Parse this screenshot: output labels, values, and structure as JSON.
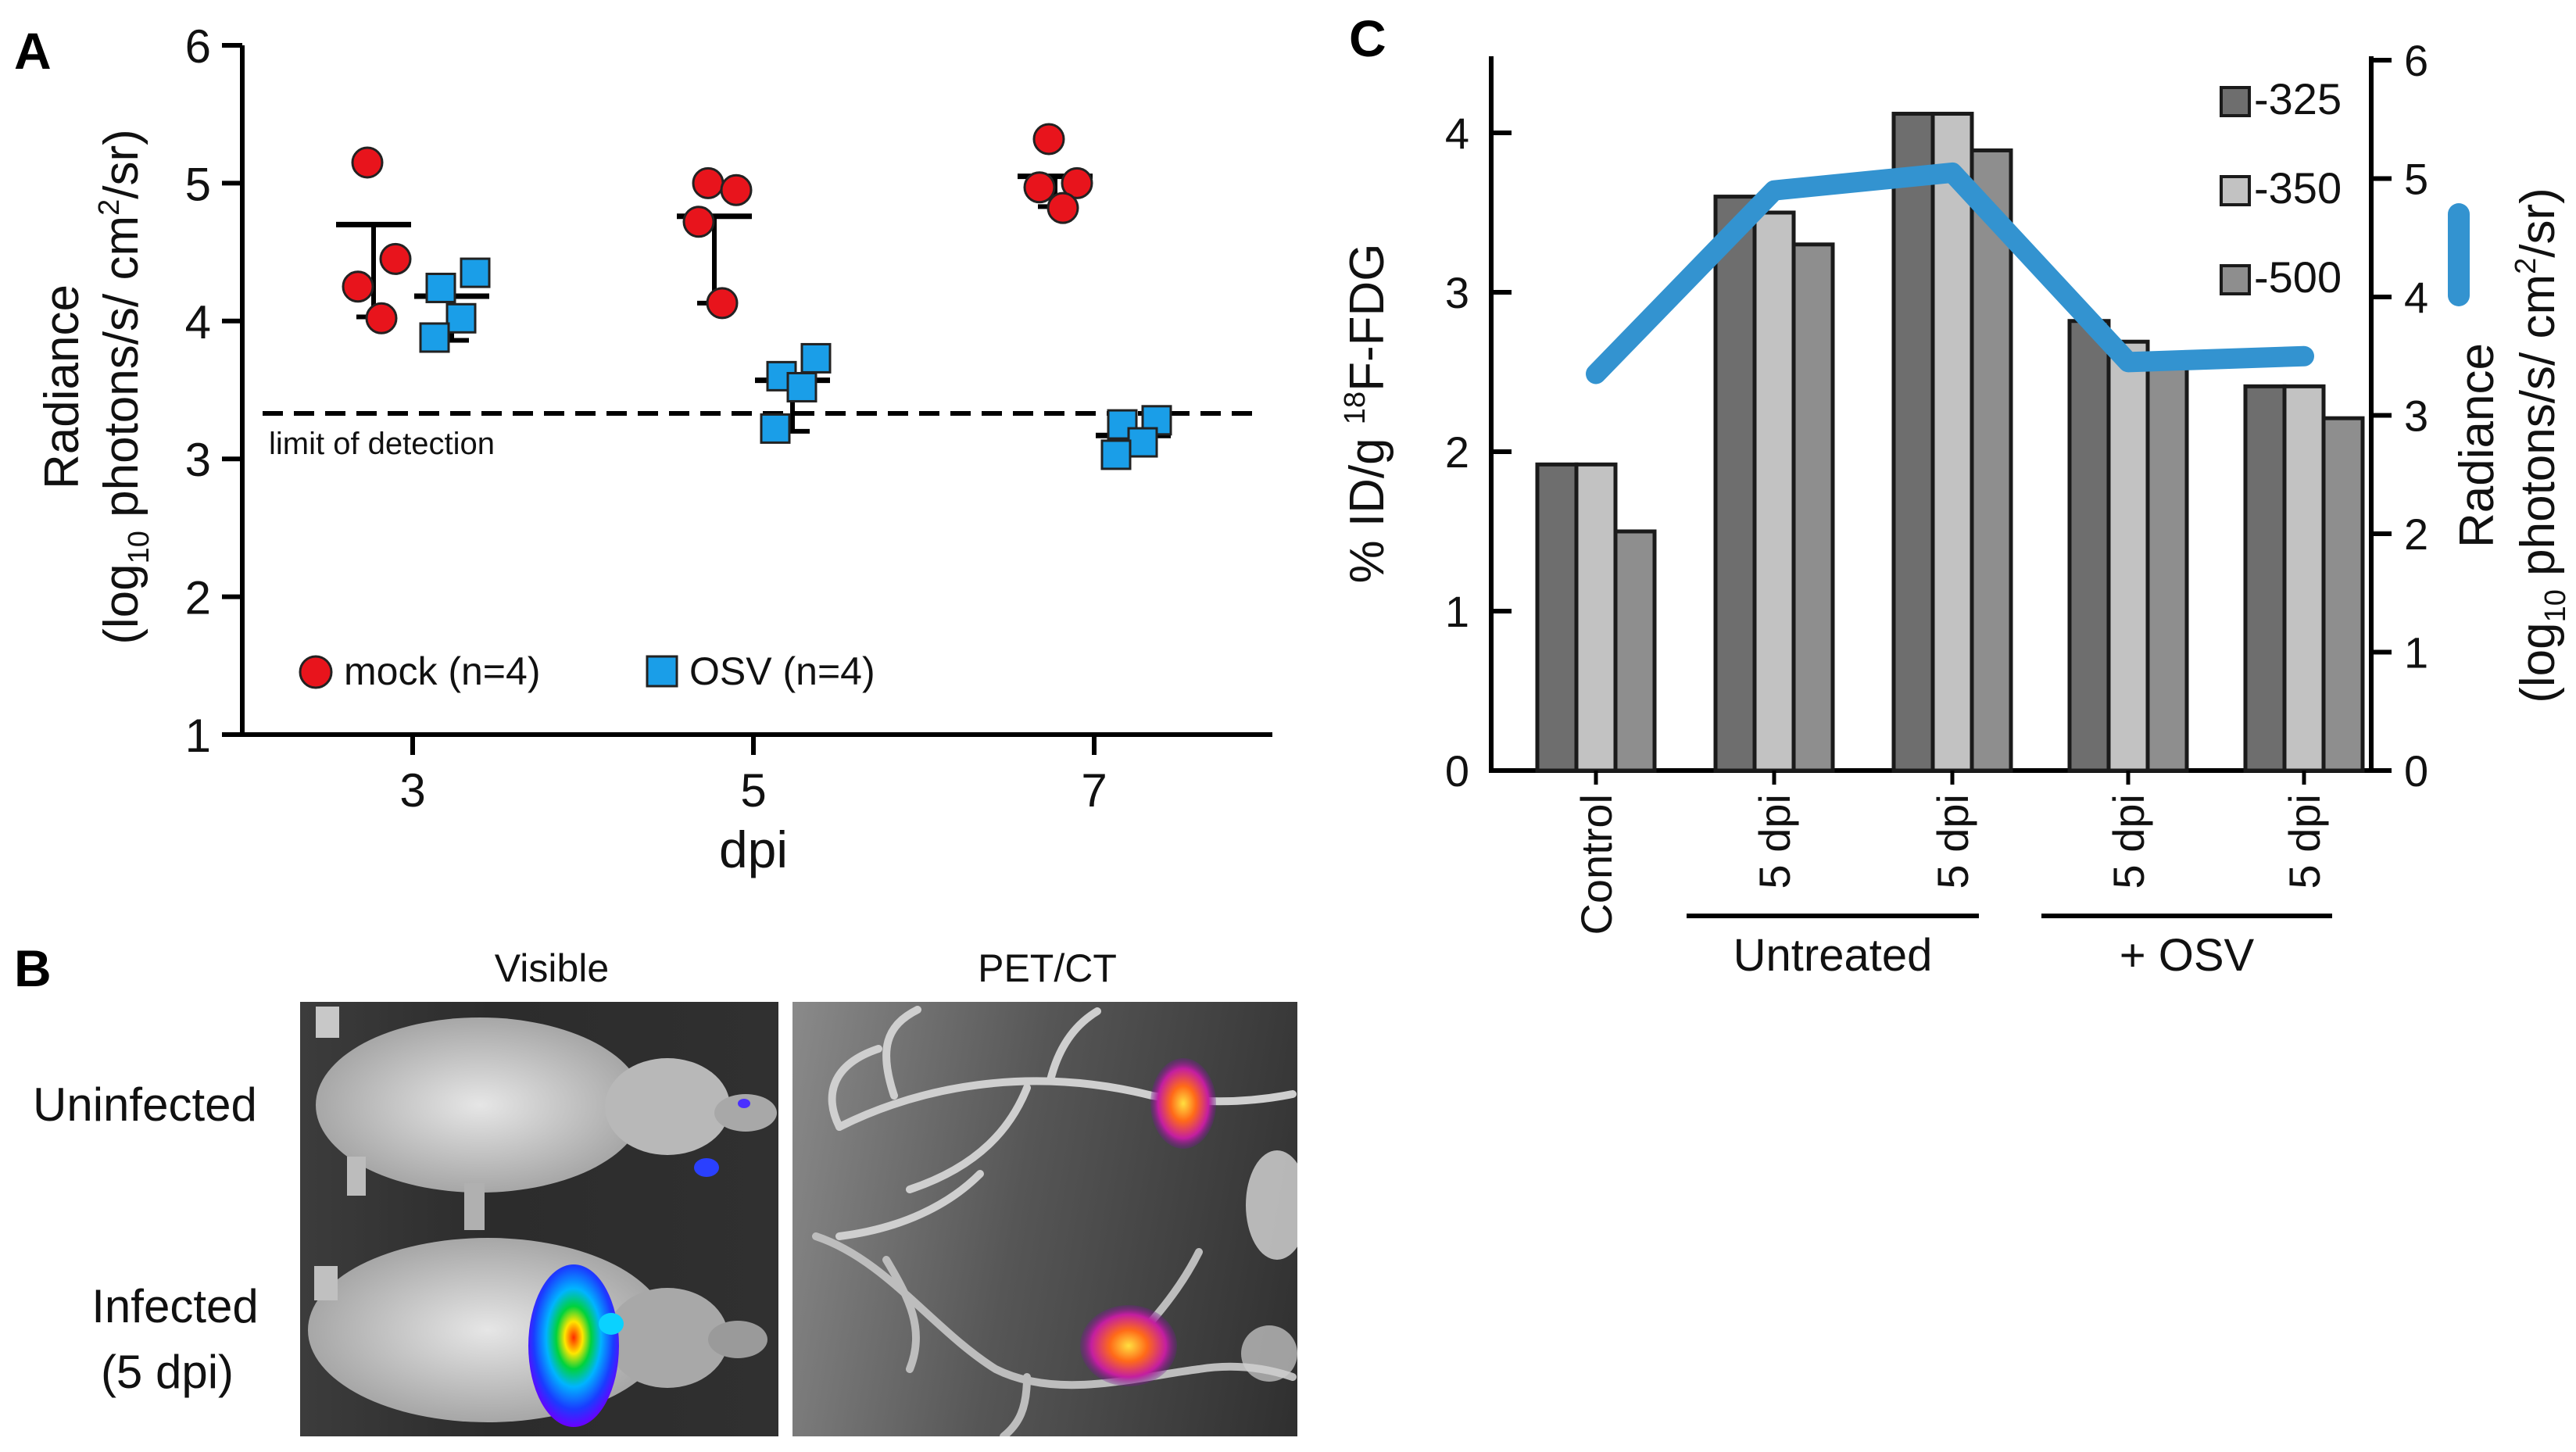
{
  "panelA": {
    "label": "A",
    "ylabel_line1": "Radiance",
    "ylabel_line2_pre": "(log",
    "ylabel_line2_sub": "10",
    "ylabel_line2_mid": " photons/s/ cm",
    "ylabel_line2_sup": "2",
    "ylabel_line2_post": "/sr)",
    "xlabel": "dpi",
    "lod_label": "limit of detection",
    "legend": [
      {
        "label": "mock (n=4)",
        "color": "#e8141c",
        "marker": "circle"
      },
      {
        "label": "OSV (n=4)",
        "color": "#1a9ee8",
        "marker": "square"
      }
    ]
  },
  "panelB": {
    "label": "B",
    "col1": "Visible",
    "col2": "PET/CT",
    "row1": "Uninfected",
    "row2_line1": "Infected",
    "row2_line2": "(5 dpi)"
  },
  "panelC": {
    "label": "C",
    "ylabel_pre": "% ID/g ",
    "ylabel_sup": "18",
    "ylabel_post": "F-FDG",
    "y2label_line1": "Radiance",
    "y2label_line2_pre": "(log",
    "y2label_line2_sub": "10",
    "y2label_line2_mid": " photons/s/ cm",
    "y2label_line2_sup": "2",
    "y2label_line2_post": "/sr)",
    "group_untreated": "Untreated",
    "group_osv": "+ OSV"
  },
  "chart_data": [
    {
      "type": "scatter",
      "panel": "A",
      "xlabel": "dpi",
      "ylabel": "Radiance (log10 photons/s/ cm2/sr)",
      "categories": [
        "3",
        "5",
        "7"
      ],
      "ylim": [
        1,
        6
      ],
      "yticks": [
        1,
        2,
        3,
        4,
        5,
        6
      ],
      "limit_of_detection": 3.33,
      "series": [
        {
          "name": "mock (n=4)",
          "points": [
            [
              5.15,
              4.45,
              4.25,
              4.02
            ],
            [
              5.0,
              4.95,
              4.72,
              4.13
            ],
            [
              5.32,
              5.0,
              4.97,
              4.82
            ]
          ],
          "mean": [
            4.7,
            4.76,
            5.05
          ],
          "sd_low": [
            4.03,
            4.13,
            4.83
          ],
          "sd_high": [
            4.7,
            4.76,
            5.05
          ]
        },
        {
          "name": "OSV (n=4)",
          "points": [
            [
              4.35,
              4.24,
              4.02,
              3.88
            ],
            [
              3.73,
              3.6,
              3.52,
              3.22
            ],
            [
              3.28,
              3.25,
              3.12,
              3.03
            ]
          ],
          "mean": [
            4.18,
            3.57,
            3.17
          ],
          "sd_low": [
            3.86,
            3.2,
            3.17
          ],
          "sd_high": [
            4.2,
            3.57,
            3.17
          ]
        }
      ]
    },
    {
      "type": "bar",
      "panel": "C",
      "categories": [
        "Control",
        "5 dpi",
        "5 dpi",
        "5 dpi",
        "5 dpi"
      ],
      "groups": [
        {
          "label": "Untreated",
          "categories": [
            1,
            2
          ]
        },
        {
          "label": "+ OSV",
          "categories": [
            3,
            4
          ]
        }
      ],
      "ylabel": "% ID/g 18F-FDG",
      "ylim": [
        0,
        4.5
      ],
      "yticks": [
        0,
        1,
        2,
        3,
        4
      ],
      "series": [
        {
          "name": "-325",
          "color": "#6e6e6e",
          "values": [
            1.92,
            3.6,
            4.12,
            2.82,
            2.41
          ]
        },
        {
          "name": "-350",
          "color": "#c2c2c2",
          "values": [
            1.92,
            3.5,
            4.12,
            2.69,
            2.41
          ]
        },
        {
          "name": "-500",
          "color": "#8e8e8e",
          "values": [
            1.5,
            3.3,
            3.89,
            2.56,
            2.21
          ]
        }
      ],
      "line_series": {
        "axis": "right",
        "color": "#3393d0",
        "ylabel": "Radiance (log10 photons/s/ cm2/sr)",
        "ylim": [
          0,
          6
        ],
        "yticks": [
          0,
          1,
          2,
          3,
          4,
          5,
          6
        ],
        "values": [
          3.35,
          4.9,
          5.05,
          3.45,
          3.5
        ]
      }
    }
  ]
}
